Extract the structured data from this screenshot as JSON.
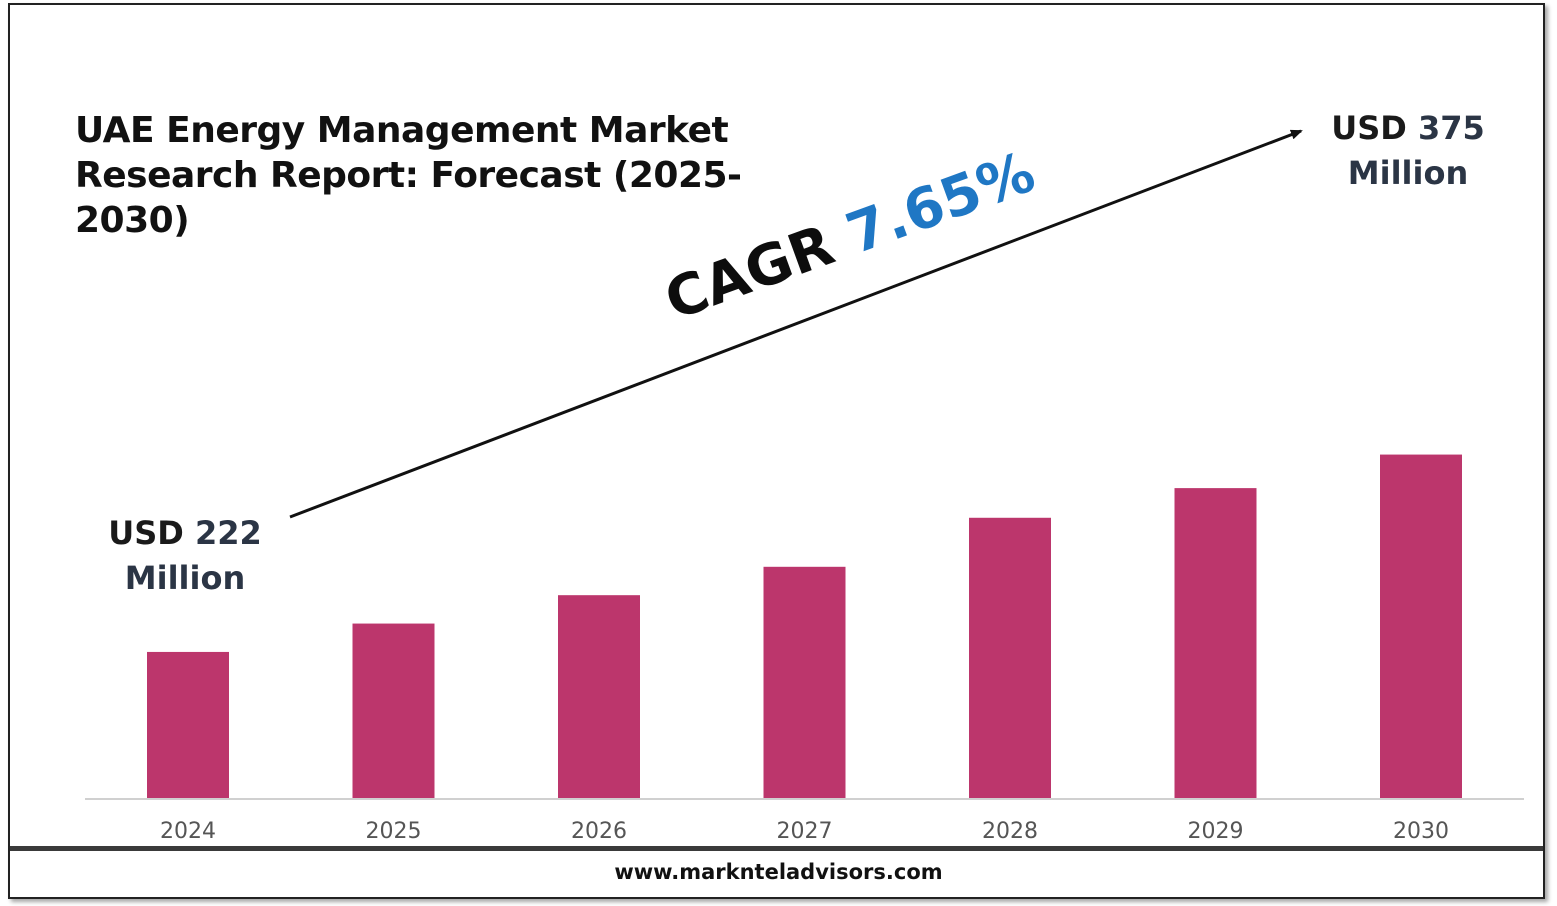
{
  "chart_data": {
    "type": "bar",
    "title": "UAE Energy Management Market Research Report: Forecast (2025-2030)",
    "categories": [
      "2024",
      "2025",
      "2026",
      "2027",
      "2028",
      "2029",
      "2030"
    ],
    "values": [
      222,
      244,
      266,
      288,
      326,
      349,
      375
    ],
    "unit": "USD Million",
    "bar_color": "#bc366c",
    "annotations": {
      "start_label": {
        "prefix": "USD",
        "value": "222",
        "suffix": "Million"
      },
      "end_label": {
        "prefix": "USD",
        "value": "375",
        "suffix": "Million"
      },
      "cagr": {
        "label": "CAGR",
        "value": "7.65%",
        "value_color": "#1f77c4"
      }
    },
    "grid": false,
    "legend": "none"
  },
  "footer": {
    "url": "www.marknteladvisors.com"
  }
}
